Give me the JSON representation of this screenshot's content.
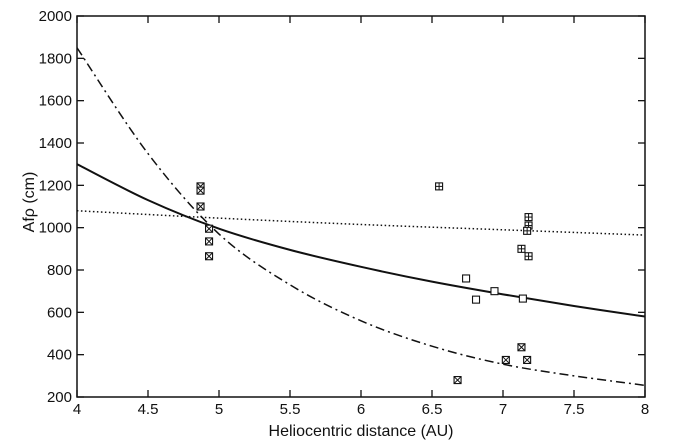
{
  "chart_data": {
    "type": "scatter",
    "title": "",
    "xlabel": "Heliocentric distance (AU)",
    "ylabel": "Afρ (cm)",
    "xlim": [
      4,
      8
    ],
    "ylim": [
      200,
      2000
    ],
    "grid": false,
    "x_ticks": [
      4,
      4.5,
      5,
      5.5,
      6,
      6.5,
      7,
      7.5,
      8
    ],
    "x_tick_labels": [
      "4",
      "4.5",
      "5",
      "5.5",
      "6",
      "6.5",
      "7",
      "7.5",
      "8"
    ],
    "y_ticks": [
      200,
      400,
      600,
      800,
      1000,
      1200,
      1400,
      1600,
      1800,
      2000
    ],
    "y_tick_labels": [
      "200",
      "400",
      "600",
      "800",
      "1000",
      "1200",
      "1400",
      "1600",
      "1800",
      "2000"
    ],
    "series": [
      {
        "marker": "square-cross",
        "points": [
          {
            "x": 4.87,
            "y": 1195
          },
          {
            "x": 4.87,
            "y": 1175
          },
          {
            "x": 4.87,
            "y": 1100
          },
          {
            "x": 4.93,
            "y": 995
          },
          {
            "x": 4.93,
            "y": 935
          },
          {
            "x": 4.93,
            "y": 865
          },
          {
            "x": 6.68,
            "y": 280
          },
          {
            "x": 7.02,
            "y": 375
          },
          {
            "x": 7.13,
            "y": 435
          },
          {
            "x": 7.17,
            "y": 375
          }
        ]
      },
      {
        "marker": "square-plus",
        "points": [
          {
            "x": 6.55,
            "y": 1195
          },
          {
            "x": 7.18,
            "y": 1050
          },
          {
            "x": 7.18,
            "y": 1010
          },
          {
            "x": 7.17,
            "y": 985
          },
          {
            "x": 7.13,
            "y": 900
          },
          {
            "x": 7.18,
            "y": 865
          }
        ]
      },
      {
        "marker": "square-open",
        "points": [
          {
            "x": 6.74,
            "y": 760
          },
          {
            "x": 6.81,
            "y": 660
          },
          {
            "x": 6.94,
            "y": 700
          },
          {
            "x": 7.14,
            "y": 665
          }
        ]
      }
    ],
    "curves": [
      {
        "style": "solid",
        "x": [
          4,
          4.5,
          5,
          5.5,
          6,
          6.5,
          7,
          7.5,
          8
        ],
        "y": [
          1300,
          1130,
          995,
          895,
          815,
          745,
          685,
          630,
          580
        ]
      },
      {
        "style": "dotted",
        "x": [
          4,
          5,
          6,
          7,
          8
        ],
        "y": [
          1080,
          1045,
          1015,
          990,
          965
        ]
      },
      {
        "style": "dash-dot",
        "x": [
          4,
          4.5,
          5,
          5.5,
          6,
          6.5,
          7,
          7.5,
          8
        ],
        "y": [
          1850,
          1350,
          970,
          730,
          560,
          440,
          355,
          300,
          255
        ]
      }
    ],
    "colors": {
      "ink": "#111111",
      "background": "#ffffff"
    }
  }
}
